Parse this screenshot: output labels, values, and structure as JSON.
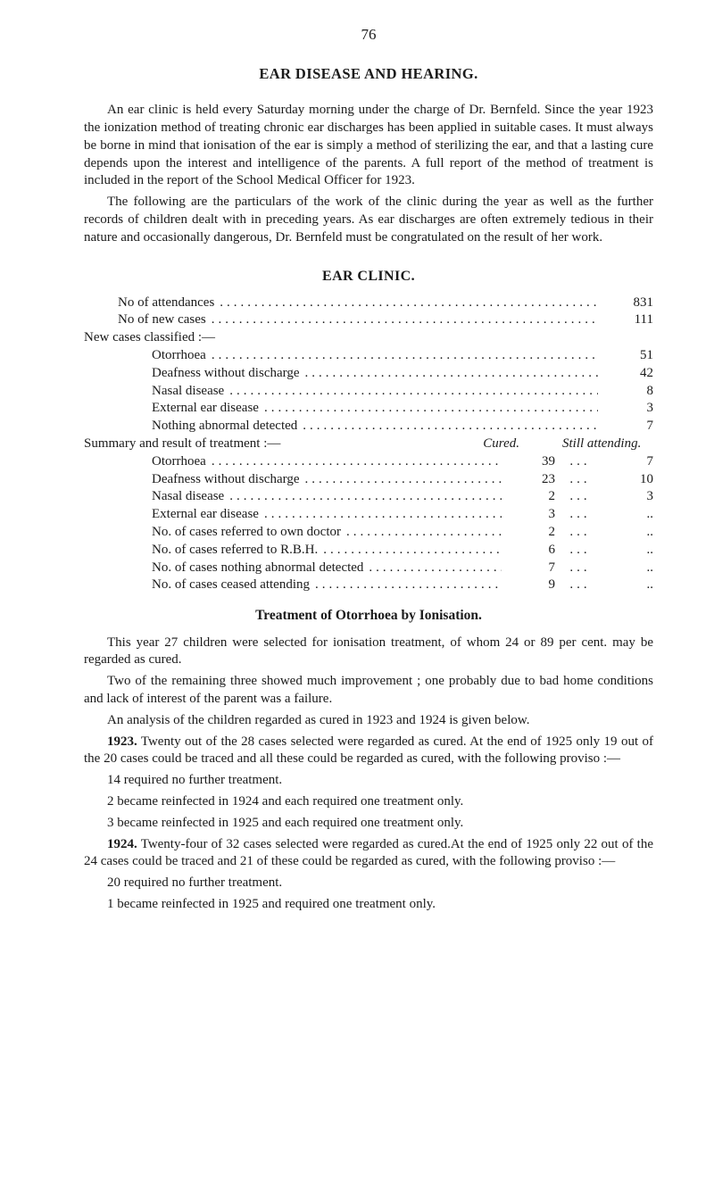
{
  "pageNumber": "76",
  "mainTitle": "EAR DISEASE AND HEARING.",
  "intro1": "An ear clinic is held every Saturday morning under the charge of Dr. Bernfeld. Since the year 1923 the ionization method of treating chronic ear discharges has been applied in suitable cases. It must always be borne in mind that ionisation of the ear is simply a method of sterilizing the ear, and that a lasting cure depends upon the interest and intelligence of the parents. A full report of the method of treatment is included in the report of the School Medical Officer for 1923.",
  "intro2": "The following are the particulars of the work of the clinic during the year as well as the further records of children dealt with in preceding years. As ear discharges are often extremely tedious in their nature and occasionally dangerous, Dr. Bernfeld must be congratulated on the result of her work.",
  "clinicTitle": "EAR CLINIC.",
  "row_attend": {
    "label": "No of attendances",
    "value": "831"
  },
  "row_newcases": {
    "label": "No of new cases",
    "value": "111"
  },
  "newCasesLabel": "New cases classified :—",
  "nc1": {
    "label": "Otorrhoea",
    "value": "51"
  },
  "nc2": {
    "label": "Deafness without discharge",
    "value": "42"
  },
  "nc3": {
    "label": "Nasal disease",
    "value": "8"
  },
  "nc4": {
    "label": "External ear disease",
    "value": "3"
  },
  "nc5": {
    "label": "Nothing abnormal detected",
    "value": "7"
  },
  "summaryLabel": "Summary and result of treatment :—",
  "curedHdr": "Cured.",
  "stillHdr": "Still attending.",
  "s1": {
    "label": "Otorrhoea",
    "cured": "39",
    "still": "7"
  },
  "s2": {
    "label": "Deafness without discharge",
    "cured": "23",
    "still": "10"
  },
  "s3": {
    "label": "Nasal disease",
    "cured": "2",
    "still": "3"
  },
  "s4": {
    "label": "External ear disease",
    "cured": "3",
    "still": ".."
  },
  "s5": {
    "label": "No. of cases referred to own doctor",
    "cured": "2",
    "still": ".."
  },
  "s6": {
    "label": "No. of cases referred to R.B.H.",
    "cured": "6",
    "still": ".."
  },
  "s7": {
    "label": "No. of cases nothing abnormal detected",
    "cured": "7",
    "still": ".."
  },
  "s8": {
    "label": "No. of cases ceased attending",
    "cured": "9",
    "still": ".."
  },
  "treatmentTitle": "Treatment of Otorrhoea by Ionisation.",
  "t1": "This year 27 children were selected for ionisation treatment, of whom 24 or 89 per cent. may be regarded as cured.",
  "t2": "Two of the remaining three showed much improvement ; one probably due to bad home conditions and lack of interest of the parent was a failure.",
  "t3": "An analysis of the children regarded as cured in 1923 and 1924 is given below.",
  "y1923lead": "1923.",
  "y1923body": "  Twenty out of the 28 cases selected were regarded as cured. At the end of 1925 only 19 out of the 20 cases could be traced and all these could be regarded as cured, with the following proviso :—",
  "p14": "14 required no further treatment.",
  "p2a": "2 became reinfected in 1924 and each required one treatment only.",
  "p3a": "3 became reinfected in 1925 and each required one treatment only.",
  "y1924lead": "1924.",
  "y1924body": "  Twenty-four of 32 cases selected were regarded as cured.At the end of 1925 only 22 out of the 24 cases could be traced and 21 of these could be regarded as cured, with the following proviso :—",
  "p20": "20 required no further treatment.",
  "p1b": "1 became reinfected in 1925 and required one treatment only.",
  "dotfill": "......................................................................"
}
